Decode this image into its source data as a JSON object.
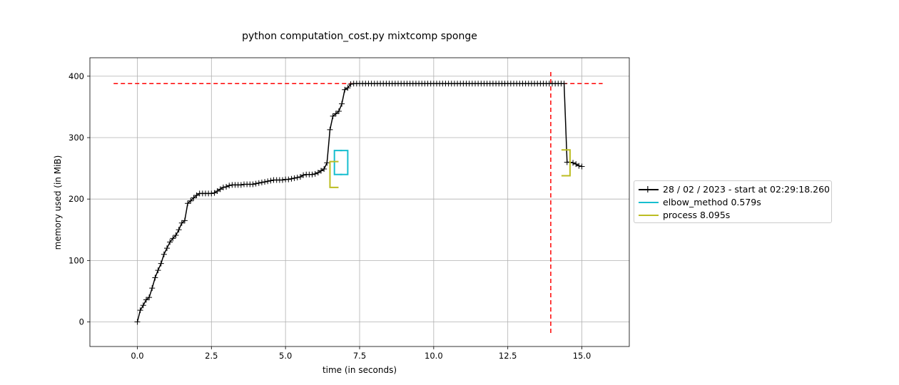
{
  "chart_data": {
    "type": "line",
    "title": "python computation_cost.py mixtcomp sponge",
    "xlabel": "time (in seconds)",
    "ylabel": "memory used (in MiB)",
    "xlim": [
      -1.6,
      16.6
    ],
    "ylim": [
      -40,
      430
    ],
    "grid": true,
    "legend_position": "outside-right",
    "xticks": [
      0.0,
      2.5,
      5.0,
      7.5,
      10.0,
      12.5,
      15.0
    ],
    "xtick_labels": [
      "0.0",
      "2.5",
      "5.0",
      "7.5",
      "10.0",
      "12.5",
      "15.0"
    ],
    "yticks": [
      0,
      100,
      200,
      300,
      400
    ],
    "ytick_labels": [
      "0",
      "100",
      "200",
      "300",
      "400"
    ],
    "series": [
      {
        "name": "28 / 02 / 2023 - start at 02:29:18.260",
        "color": "#000000",
        "marker": "+",
        "x": [
          0.0,
          0.1,
          0.2,
          0.3,
          0.4,
          0.5,
          0.6,
          0.7,
          0.8,
          0.9,
          1.0,
          1.1,
          1.2,
          1.3,
          1.4,
          1.5,
          1.6,
          1.7,
          1.8,
          1.9,
          2.0,
          2.1,
          2.2,
          2.3,
          2.4,
          2.5,
          2.6,
          2.7,
          2.8,
          2.9,
          3.0,
          3.1,
          3.2,
          3.3,
          3.4,
          3.5,
          3.6,
          3.7,
          3.8,
          3.9,
          4.0,
          4.1,
          4.2,
          4.3,
          4.4,
          4.5,
          4.6,
          4.7,
          4.8,
          4.9,
          5.0,
          5.1,
          5.2,
          5.3,
          5.4,
          5.5,
          5.6,
          5.7,
          5.8,
          5.9,
          6.0,
          6.1,
          6.2,
          6.3,
          6.4,
          6.5,
          6.6,
          6.7,
          6.8,
          6.9,
          7.0,
          7.1,
          7.2,
          7.3,
          7.4,
          7.5,
          7.6,
          7.7,
          7.8,
          7.9,
          8.0,
          8.1,
          8.2,
          8.3,
          8.4,
          8.5,
          8.6,
          8.7,
          8.8,
          8.9,
          9.0,
          9.1,
          9.2,
          9.3,
          9.4,
          9.5,
          9.6,
          9.7,
          9.8,
          9.9,
          10.0,
          10.1,
          10.2,
          10.3,
          10.4,
          10.5,
          10.6,
          10.7,
          10.8,
          10.9,
          11.0,
          11.1,
          11.2,
          11.3,
          11.4,
          11.5,
          11.6,
          11.7,
          11.8,
          11.9,
          12.0,
          12.1,
          12.2,
          12.3,
          12.4,
          12.5,
          12.6,
          12.7,
          12.8,
          12.9,
          13.0,
          13.1,
          13.2,
          13.3,
          13.4,
          13.5,
          13.6,
          13.7,
          13.8,
          13.9,
          14.0,
          14.1,
          14.2,
          14.3,
          14.4,
          14.5,
          14.6,
          14.7,
          14.8,
          14.9,
          15.0
        ],
        "y": [
          0,
          19,
          27,
          36,
          40,
          55,
          72,
          84,
          95,
          110,
          120,
          130,
          136,
          141,
          150,
          161,
          165,
          193,
          197,
          202,
          206,
          209,
          209,
          209,
          209,
          209,
          210,
          213,
          216,
          219,
          220,
          222,
          223,
          223,
          223,
          223,
          224,
          224,
          224,
          224,
          225,
          226,
          227,
          228,
          229,
          230,
          231,
          231,
          231,
          231,
          232,
          232,
          233,
          234,
          235,
          236,
          239,
          240,
          240,
          240,
          241,
          243,
          246,
          249,
          259,
          313,
          335,
          339,
          343,
          355,
          378,
          381,
          387,
          388,
          388,
          388,
          388,
          388,
          388,
          388,
          388,
          388,
          388,
          388,
          388,
          388,
          388,
          388,
          388,
          388,
          388,
          388,
          388,
          388,
          388,
          388,
          388,
          388,
          388,
          388,
          388,
          388,
          388,
          388,
          388,
          388,
          388,
          388,
          388,
          388,
          388,
          388,
          388,
          388,
          388,
          388,
          388,
          388,
          388,
          388,
          388,
          388,
          388,
          388,
          388,
          388,
          388,
          388,
          388,
          388,
          388,
          388,
          388,
          388,
          388,
          388,
          388,
          388,
          388,
          388,
          388,
          388,
          388,
          388,
          388,
          260,
          260,
          259,
          257,
          254,
          253
        ]
      }
    ],
    "brackets": [
      {
        "name": "elbow_method 0.579s",
        "color": "#17becf",
        "x_start": 6.65,
        "x_end": 7.1,
        "y_low": 240,
        "y_high": 279
      },
      {
        "name": "process 8.095s",
        "color": "#bcbd22",
        "x_start": 6.5,
        "x_end": 14.6,
        "y_low_start": 219,
        "y_high_start": 261,
        "y_low_end": 238,
        "y_high_end": 280
      }
    ],
    "max_memory_line": {
      "y": 388,
      "color": "#ff0000",
      "style": "dashed",
      "x_from": -0.8,
      "x_to": 15.7
    },
    "max_time_line": {
      "x": 13.95,
      "color": "#ff0000",
      "style": "dashed",
      "y_from": -18,
      "y_to": 408
    }
  },
  "legend": {
    "entries": [
      {
        "label": "28 / 02 / 2023 - start at 02:29:18.260",
        "color": "#000000",
        "marker": "+"
      },
      {
        "label": "elbow_method 0.579s",
        "color": "#17becf"
      },
      {
        "label": "process 8.095s",
        "color": "#bcbd22"
      }
    ]
  }
}
